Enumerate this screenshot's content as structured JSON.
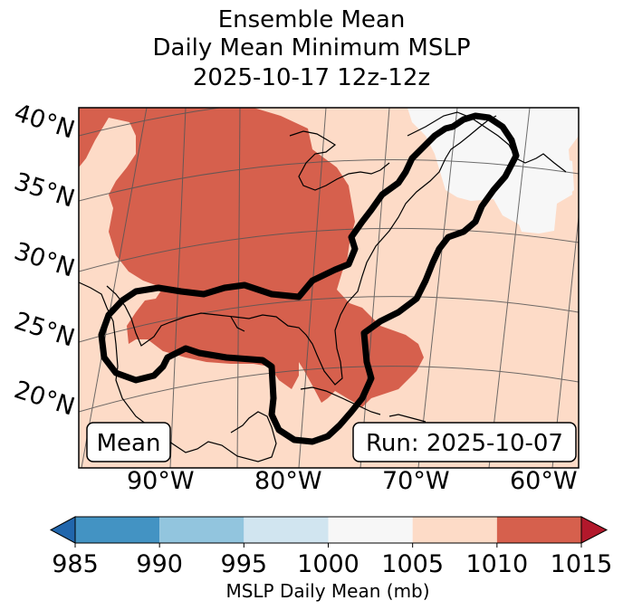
{
  "chart_data": {
    "type": "heatmap",
    "title_lines": [
      "Ensemble Mean",
      "Daily Mean Minimum MSLP",
      "2025-10-17 12z-12z"
    ],
    "lat_ticks": [
      "40°N",
      "35°N",
      "30°N",
      "25°N",
      "20°N"
    ],
    "lon_ticks": [
      "90°W",
      "80°W",
      "70°W",
      "60°W"
    ],
    "colorbar": {
      "label": "MSLP Daily Mean (mb)",
      "ticks": [
        "985",
        "990",
        "995",
        "1000",
        "1005",
        "1010",
        "1015"
      ],
      "bins": [
        {
          "range": [
            985,
            990
          ],
          "color": "#4393c3"
        },
        {
          "range": [
            990,
            995
          ],
          "color": "#92c5de"
        },
        {
          "range": [
            995,
            1000
          ],
          "color": "#d1e5f0"
        },
        {
          "range": [
            1000,
            1005
          ],
          "color": "#f7f7f7"
        },
        {
          "range": [
            1005,
            1010
          ],
          "color": "#fddbc7"
        },
        {
          "range": [
            1010,
            1015
          ],
          "color": "#d6604d"
        }
      ],
      "under_color": "#2166ac",
      "over_color": "#b2182b"
    },
    "fields": {
      "dominant": "1005-1010",
      "low_pressure_region": "1010-1015 over central/eastern US and Gulf of Mexico",
      "high_pressure_patch": "1000-1005 over Maine/Nova Scotia"
    },
    "annotations": {
      "left": "Mean",
      "right": "Run: 2025-10-07"
    }
  }
}
